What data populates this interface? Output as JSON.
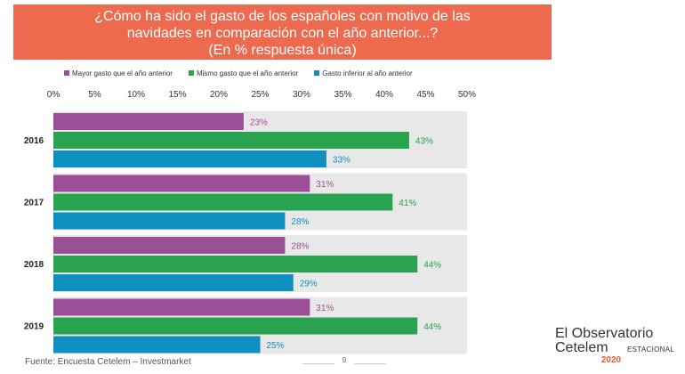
{
  "title": {
    "lines": [
      "¿Cómo ha sido el gasto de los españoles con motivo de las",
      "navidades en  comparación con el año anterior...?",
      "(En %  respuesta única)"
    ]
  },
  "colors": {
    "banner": "#ee6a4f",
    "series": [
      "#9b4f96",
      "#2aa351",
      "#0d8fbf"
    ],
    "band": "#e8e8e8"
  },
  "chart_data": {
    "type": "bar",
    "orientation": "horizontal",
    "categories": [
      "2016",
      "2017",
      "2018",
      "2019"
    ],
    "series": [
      {
        "name": "Mayor gasto que el año anterior",
        "values": [
          23,
          31,
          28,
          31
        ]
      },
      {
        "name": "Mismo gasto que el año anterior",
        "values": [
          43,
          41,
          44,
          44
        ]
      },
      {
        "name": "Gasto inferior al año anterior",
        "values": [
          33,
          28,
          29,
          25
        ]
      }
    ],
    "xlim": [
      0,
      50
    ],
    "xticks": [
      "0%",
      "5%",
      "10%",
      "15%",
      "20%",
      "25%",
      "30%",
      "35%",
      "40%",
      "45%",
      "50%"
    ],
    "xtick_values": [
      0,
      5,
      10,
      15,
      20,
      25,
      30,
      35,
      40,
      45,
      50
    ],
    "value_suffix": "%",
    "legend_position": "top",
    "grid": false
  },
  "footer": {
    "source": "Fuente: Encuesta Cetelem – Investmarket",
    "page": "9"
  },
  "logo": {
    "line1": "El Observatorio",
    "line2": "Cetelem",
    "line2_suffix": "ESTACIONAL",
    "year": "2020"
  }
}
